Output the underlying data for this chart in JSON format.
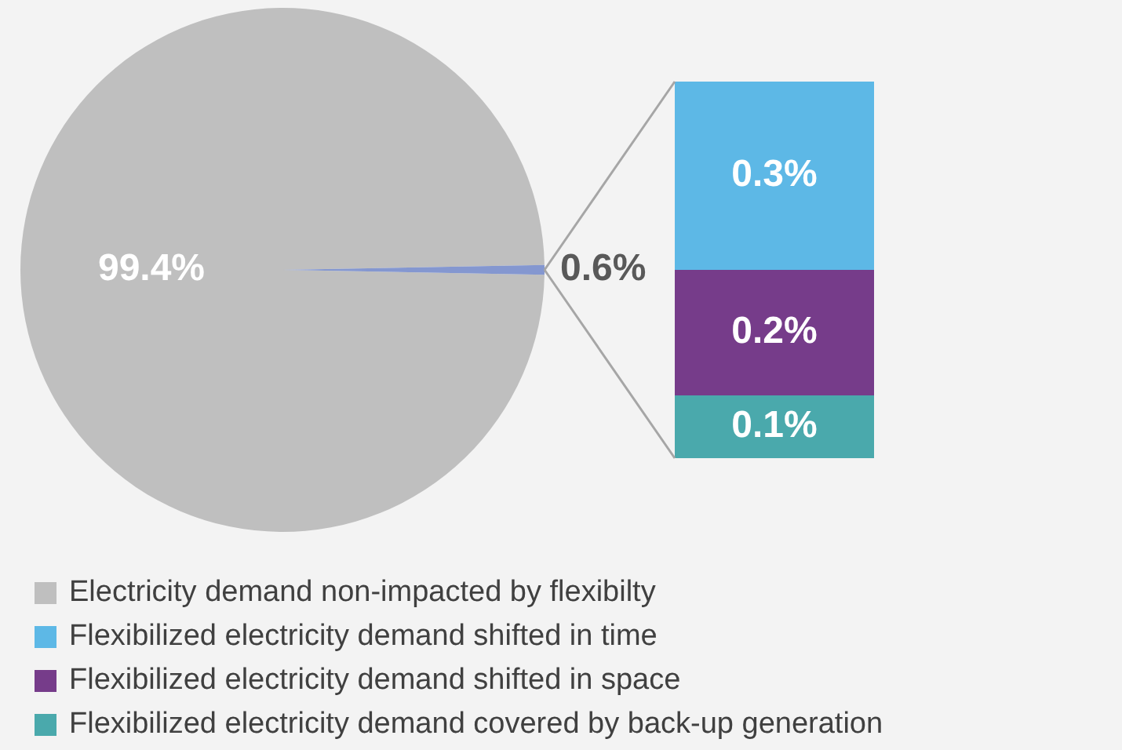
{
  "chart_data": [
    {
      "type": "pie",
      "categories": [
        "Electricity demand non-impacted by flexibilty",
        null
      ],
      "values": [
        99.4,
        0.6
      ],
      "colors": [
        "#bfbfbf",
        "#8497d0"
      ],
      "value_labels": [
        "99.4%",
        "0.6%"
      ],
      "legend": "bottom"
    },
    {
      "type": "bar",
      "stacked": true,
      "categories": [
        null
      ],
      "legend": "bottom",
      "series": [
        {
          "name": "Flexibilized electricity demand covered by back-up generation",
          "color": "#4aa9ac",
          "values": [
            0.1
          ],
          "value_labels": [
            "0.1%"
          ]
        },
        {
          "name": "Flexibilized electricity demand shifted in space",
          "color": "#763c8a",
          "values": [
            0.2
          ],
          "value_labels": [
            "0.2%"
          ]
        },
        {
          "name": "Flexibilized electricity demand shifted in time",
          "color": "#5db8e6",
          "values": [
            0.3
          ],
          "value_labels": [
            "0.3%"
          ]
        }
      ]
    }
  ]
}
